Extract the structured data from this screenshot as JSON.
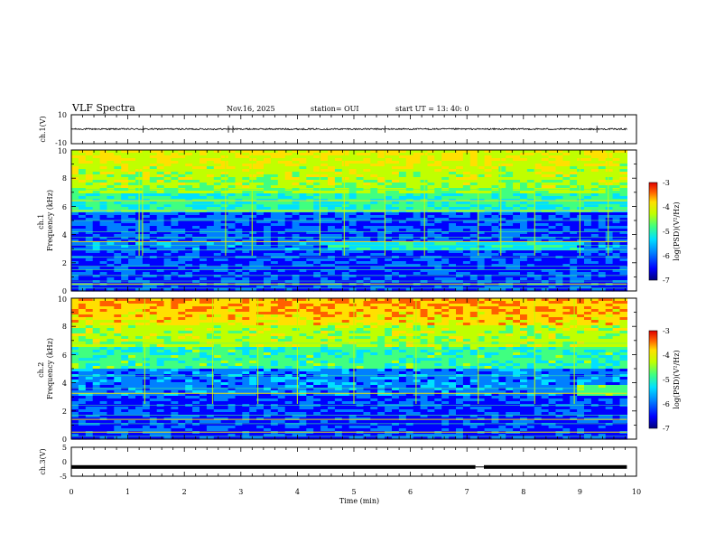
{
  "header": {
    "title": "VLF Spectra",
    "date": "Nov.16, 2025",
    "station": "station= OUI",
    "start": "start  UT  =   13: 40: 0"
  },
  "colors": {
    "background": "#ffffff",
    "axis": "#000000",
    "spectrogram_palette": [
      "#00007a",
      "#0000ff",
      "#0080ff",
      "#00e0ff",
      "#40ff80",
      "#c0ff00",
      "#ffe000",
      "#ff6000",
      "#e00000"
    ]
  },
  "chart_data": [
    {
      "type": "line",
      "name": "ch1-waveform",
      "ylabel": "ch.1(V)",
      "ylim": [
        -10,
        10
      ],
      "yticks": [
        "10",
        "-10"
      ],
      "baseline": 0.1,
      "noise_amplitude": 0.5,
      "spikes_min": [
        1.27,
        2.78,
        2.86,
        5.55,
        9.3
      ]
    },
    {
      "type": "heatmap",
      "name": "ch1-spectrogram",
      "ylabel": "ch.1\nFrequency (kHz)",
      "ylim": [
        0,
        10
      ],
      "yticks": [
        "0",
        "2",
        "4",
        "6",
        "8",
        "10"
      ],
      "data_extent_min": 9.83,
      "colorbar": {
        "label": "log(PSD)(V²/Hz)",
        "range": [
          -7,
          -3
        ],
        "ticks": [
          "-3",
          "-4",
          "-5",
          "-6",
          "-7"
        ]
      },
      "lines_khz": [
        0.2,
        0.45,
        0.7,
        1.1,
        1.5,
        1.75,
        2.4,
        2.9,
        3.25,
        3.5,
        3.8,
        4.2,
        5.0,
        5.7,
        6.15,
        6.4,
        7.2
      ],
      "bright_lines_khz": [
        0.5,
        3.5,
        5.7,
        6.4
      ],
      "burst_times_min": [
        1.2,
        1.26,
        2.73,
        3.2,
        4.4,
        4.83,
        5.55,
        6.25,
        7.2,
        7.6,
        8.2,
        9.0,
        9.5
      ]
    },
    {
      "type": "heatmap",
      "name": "ch2-spectrogram",
      "ylabel": "ch.2\nFrequency (kHz)",
      "ylim": [
        0,
        10
      ],
      "yticks": [
        "0",
        "2",
        "4",
        "6",
        "8",
        "10"
      ],
      "data_extent_min": 9.83,
      "colorbar": {
        "label": "log(PSD)(V²/Hz)",
        "range": [
          -7,
          -3
        ],
        "ticks": [
          "-3",
          "-4",
          "-5",
          "-6",
          "-7"
        ]
      },
      "lines_khz": [
        0.2,
        0.5,
        1.1,
        1.4,
        1.7,
        2.4,
        3.25,
        3.6,
        4.5,
        5.7,
        6.8
      ],
      "bright_lines_khz": [
        0.5,
        1.4,
        3.25
      ],
      "burst_times_min": [
        1.3,
        2.5,
        3.3,
        4.0,
        5.0,
        6.1,
        7.2,
        8.2,
        8.9
      ]
    },
    {
      "type": "line",
      "name": "ch3-waveform",
      "ylabel": "ch.3(V)",
      "ylim": [
        -5,
        5
      ],
      "yticks": [
        "5",
        "0",
        "-5"
      ],
      "level": -1.8,
      "gap_min": [
        7.15,
        7.3
      ]
    }
  ],
  "xaxis": {
    "label": "Time  (min)",
    "range": [
      0,
      10
    ],
    "ticks": [
      "0",
      "1",
      "2",
      "3",
      "4",
      "5",
      "6",
      "7",
      "8",
      "9",
      "10"
    ]
  }
}
